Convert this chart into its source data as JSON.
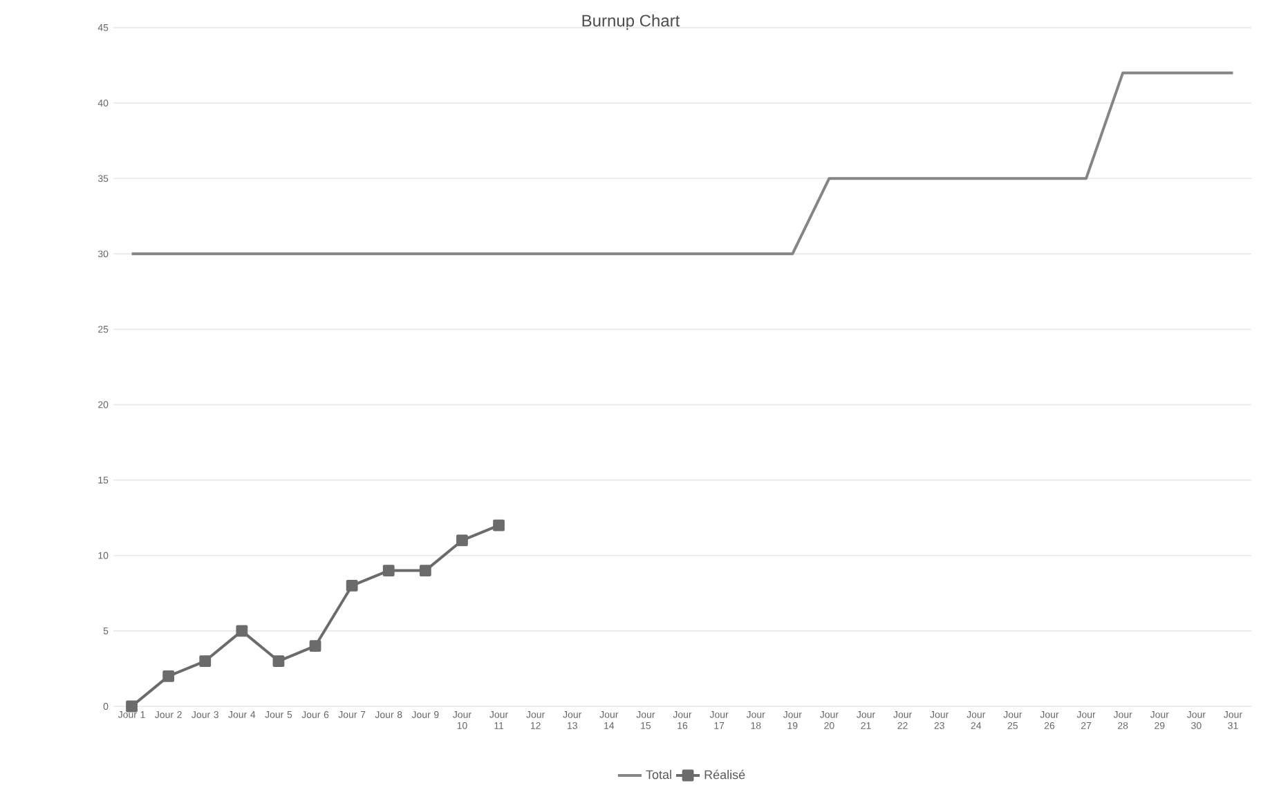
{
  "chart_data": {
    "type": "line",
    "title": "Burnup Chart",
    "categories": [
      "Jour 1",
      "Jour 2",
      "Jour 3",
      "Jour 4",
      "Jour 5",
      "Jour 6",
      "Jour 7",
      "Jour 8",
      "Jour 9",
      "Jour 10",
      "Jour 11",
      "Jour 12",
      "Jour 13",
      "Jour 14",
      "Jour 15",
      "Jour 16",
      "Jour 17",
      "Jour 18",
      "Jour 19",
      "Jour 20",
      "Jour 21",
      "Jour 22",
      "Jour 23",
      "Jour 24",
      "Jour 25",
      "Jour 26",
      "Jour 27",
      "Jour 28",
      "Jour 29",
      "Jour 30",
      "Jour 31"
    ],
    "series": [
      {
        "name": "Total",
        "color": "#858585",
        "marker": "none",
        "values": [
          30,
          30,
          30,
          30,
          30,
          30,
          30,
          30,
          30,
          30,
          30,
          30,
          30,
          30,
          30,
          30,
          30,
          30,
          30,
          35,
          35,
          35,
          35,
          35,
          35,
          35,
          35,
          42,
          42,
          42,
          42
        ]
      },
      {
        "name": "Réalisé",
        "color": "#6b6b6b",
        "marker": "square",
        "values": [
          0,
          2,
          3,
          5,
          3,
          4,
          8,
          9,
          9,
          11,
          12,
          null,
          null,
          null,
          null,
          null,
          null,
          null,
          null,
          null,
          null,
          null,
          null,
          null,
          null,
          null,
          null,
          null,
          null,
          null,
          null
        ]
      }
    ],
    "ylim": [
      0,
      45
    ],
    "yticks": [
      0,
      5,
      10,
      15,
      20,
      25,
      30,
      35,
      40,
      45
    ],
    "grid": "y",
    "legend": "bottom"
  }
}
